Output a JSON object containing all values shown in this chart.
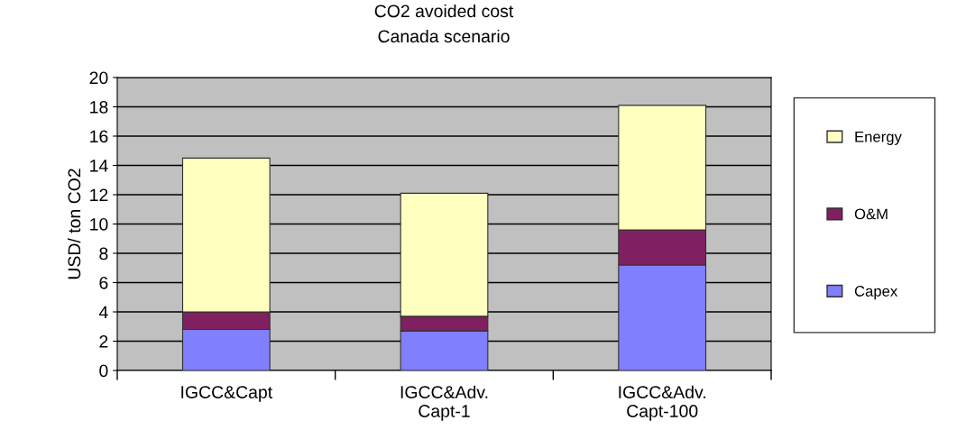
{
  "chart_data": {
    "type": "bar",
    "title": "CO2 avoided cost",
    "subtitle": "Canada scenario",
    "ylabel": "USD/ ton CO2",
    "categories": [
      "IGCC&Capt",
      "IGCC&Adv.\nCapt-1",
      "IGCC&Adv.\nCapt-100"
    ],
    "stacked": true,
    "series": [
      {
        "name": "Capex",
        "color": "#8080ff",
        "values": [
          2.8,
          2.7,
          7.2
        ]
      },
      {
        "name": "O&M",
        "color": "#802060",
        "values": [
          1.2,
          1.0,
          2.4
        ]
      },
      {
        "name": "Energy",
        "color": "#ffffc0",
        "values": [
          10.5,
          8.4,
          8.5
        ]
      }
    ],
    "ylim": [
      0,
      20
    ],
    "yticks": [
      0,
      2,
      4,
      6,
      8,
      10,
      12,
      14,
      16,
      18,
      20
    ],
    "grid": "y",
    "legend": "right"
  }
}
